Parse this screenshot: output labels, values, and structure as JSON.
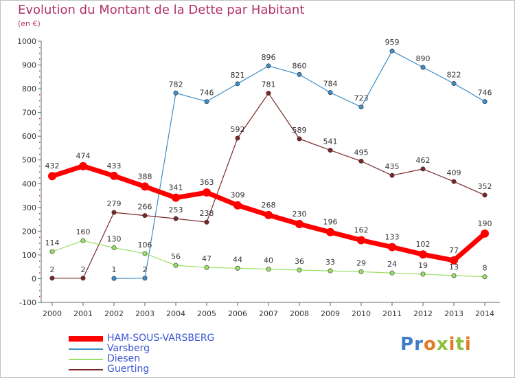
{
  "header": {
    "title": "Evolution du Montant de la Dette par Habitant",
    "subtitle": "(en €)"
  },
  "logo": {
    "text": "Proxiti",
    "colors": [
      "#3f7dc7",
      "#e07b24",
      "#8cbf3a"
    ]
  },
  "chart_data": {
    "type": "line",
    "title": "Evolution du Montant de la Dette par Habitant",
    "subtitle": "(en €)",
    "x": [
      2000,
      2001,
      2002,
      2003,
      2004,
      2005,
      2006,
      2007,
      2008,
      2009,
      2010,
      2011,
      2012,
      2013,
      2014
    ],
    "ylim": [
      -100,
      1000
    ],
    "yticks": [
      -100,
      0,
      100,
      200,
      300,
      400,
      500,
      600,
      700,
      800,
      900,
      1000
    ],
    "grid": false,
    "legend_position": "bottom-left",
    "series": [
      {
        "name": "HAM-SOUS-VARSBERG",
        "color": "#ff0000",
        "emphasis": true,
        "values": [
          432,
          474,
          433,
          388,
          341,
          363,
          309,
          268,
          230,
          196,
          162,
          133,
          102,
          77,
          190
        ]
      },
      {
        "name": "Varsberg",
        "color": "#3c8dc8",
        "emphasis": false,
        "values": [
          null,
          null,
          1,
          2,
          782,
          746,
          821,
          896,
          860,
          784,
          723,
          959,
          890,
          822,
          746
        ],
        "labels_shown": [
          false,
          false,
          true,
          true,
          true,
          true,
          true,
          true,
          true,
          true,
          true,
          true,
          true,
          true,
          true
        ]
      },
      {
        "name": "Diesen",
        "color": "#99e066",
        "emphasis": false,
        "values": [
          114,
          160,
          130,
          106,
          56,
          47,
          44,
          40,
          36,
          33,
          29,
          24,
          19,
          13,
          8
        ]
      },
      {
        "name": "Guerting",
        "color": "#7b2626",
        "emphasis": false,
        "values": [
          2,
          2,
          279,
          266,
          253,
          238,
          592,
          781,
          589,
          541,
          495,
          435,
          462,
          409,
          352
        ],
        "labels_shown": [
          true,
          true,
          true,
          true,
          true,
          true,
          true,
          true,
          true,
          true,
          true,
          true,
          true,
          true,
          true
        ]
      }
    ]
  }
}
